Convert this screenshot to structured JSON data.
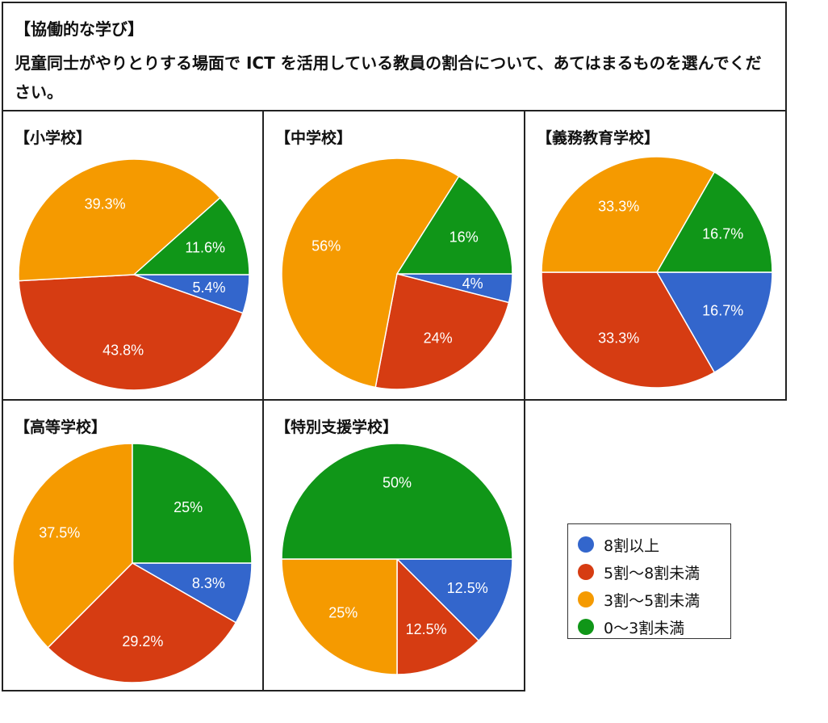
{
  "header": {
    "title": "【協働的な学び】",
    "question": "児童同士がやりとりする場面で ICT を活用している教員の割合について、あてはまるものを選んでください。"
  },
  "colors": {
    "8割以上": "#3366cc",
    "5割〜8割未満": "#d63c12",
    "3割〜5割未満": "#f59a00",
    "0〜3割未満": "#109618"
  },
  "legend": {
    "items": [
      {
        "label": "8割以上",
        "color": "#3366cc"
      },
      {
        "label": "5割〜8割未満",
        "color": "#d63c12"
      },
      {
        "label": "3割〜5割未満",
        "color": "#f59a00"
      },
      {
        "label": "0〜3割未満",
        "color": "#109618"
      }
    ]
  },
  "chart_data": [
    {
      "type": "pie",
      "title": "【小学校】",
      "categories": [
        "8割以上",
        "5割〜8割未満",
        "3割〜5割未満",
        "0〜3割未満"
      ],
      "values": [
        5.4,
        43.8,
        39.3,
        11.6
      ],
      "labels": [
        "5.4%",
        "43.8%",
        "39.3%",
        "11.6%"
      ]
    },
    {
      "type": "pie",
      "title": "【中学校】",
      "categories": [
        "8割以上",
        "5割〜8割未満",
        "3割〜5割未満",
        "0〜3割未満"
      ],
      "values": [
        4,
        24,
        56,
        16
      ],
      "labels": [
        "4%",
        "24%",
        "56%",
        "16%"
      ]
    },
    {
      "type": "pie",
      "title": "【義務教育学校】",
      "categories": [
        "8割以上",
        "5割〜8割未満",
        "3割〜5割未満",
        "0〜3割未満"
      ],
      "values": [
        16.7,
        33.3,
        33.3,
        16.7
      ],
      "labels": [
        "16.7%",
        "33.3%",
        "33.3%",
        "16.7%"
      ]
    },
    {
      "type": "pie",
      "title": "【高等学校】",
      "categories": [
        "8割以上",
        "5割〜8割未満",
        "3割〜5割未満",
        "0〜3割未満"
      ],
      "values": [
        8.3,
        29.2,
        37.5,
        25
      ],
      "labels": [
        "8.3%",
        "29.2%",
        "37.5%",
        "25%"
      ]
    },
    {
      "type": "pie",
      "title": "【特別支援学校】",
      "categories": [
        "8割以上",
        "5割〜8割未満",
        "3割〜5割未満",
        "0〜3割未満"
      ],
      "values": [
        12.5,
        12.5,
        25,
        50
      ],
      "labels": [
        "12.5%",
        "12.5%",
        "25%",
        "50%"
      ]
    }
  ]
}
